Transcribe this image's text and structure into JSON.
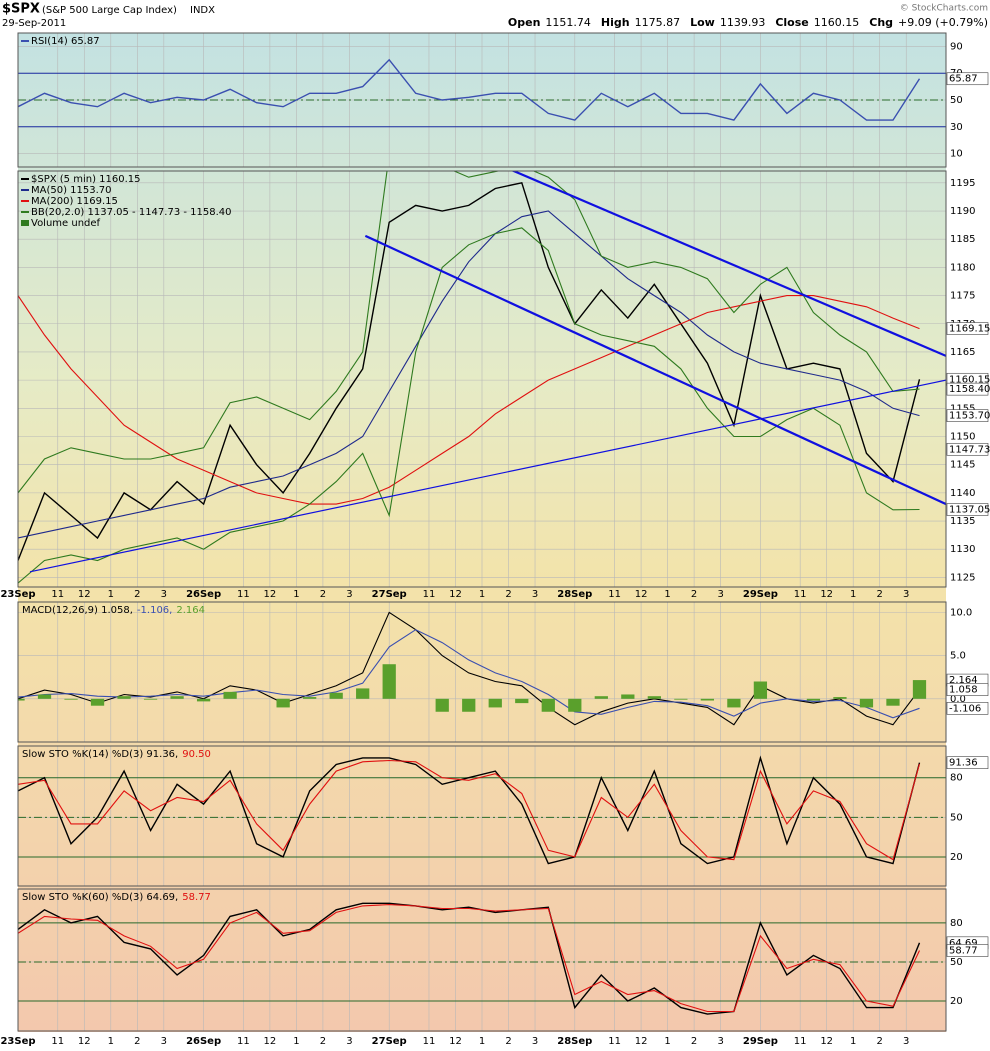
{
  "chart_data": {
    "type": "stock",
    "symbol": "$SPX",
    "name": "(S&P 500 Large Cap Index)",
    "exchange": "INDX",
    "date": "29-Sep-2011",
    "credit": "© StockCharts.com",
    "quote": [
      {
        "label": "Open",
        "value": 1151.74
      },
      {
        "label": "High",
        "value": 1175.87
      },
      {
        "label": "Low",
        "value": 1139.93
      },
      {
        "label": "Close",
        "value": 1160.15
      },
      {
        "label": "Chg",
        "value": "+9.09 (+0.79%)"
      }
    ],
    "x": [
      0,
      1,
      2,
      3,
      4,
      5,
      6,
      7,
      8,
      9,
      10,
      11,
      12,
      13,
      14,
      15,
      16,
      17,
      18,
      19,
      20,
      21,
      22,
      23,
      24,
      25,
      26,
      27,
      28,
      29,
      30,
      31,
      32,
      33,
      34
    ],
    "xlim": [
      0,
      35
    ],
    "xticks": [
      {
        "value": 0,
        "label": "23Sep"
      },
      {
        "value": 1.5,
        "label": "11"
      },
      {
        "value": 2.5,
        "label": "12"
      },
      {
        "value": 3.5,
        "label": "1"
      },
      {
        "value": 4.5,
        "label": "2"
      },
      {
        "value": 5.5,
        "label": "3"
      },
      {
        "value": 7,
        "label": "26Sep"
      },
      {
        "value": 8.5,
        "label": "11"
      },
      {
        "value": 9.5,
        "label": "12"
      },
      {
        "value": 10.5,
        "label": "1"
      },
      {
        "value": 11.5,
        "label": "2"
      },
      {
        "value": 12.5,
        "label": "3"
      },
      {
        "value": 14,
        "label": "27Sep"
      },
      {
        "value": 15.5,
        "label": "11"
      },
      {
        "value": 16.5,
        "label": "12"
      },
      {
        "value": 17.5,
        "label": "1"
      },
      {
        "value": 18.5,
        "label": "2"
      },
      {
        "value": 19.5,
        "label": "3"
      },
      {
        "value": 21,
        "label": "28Sep"
      },
      {
        "value": 22.5,
        "label": "11"
      },
      {
        "value": 23.5,
        "label": "12"
      },
      {
        "value": 24.5,
        "label": "1"
      },
      {
        "value": 25.5,
        "label": "2"
      },
      {
        "value": 26.5,
        "label": "3"
      },
      {
        "value": 28,
        "label": "29Sep"
      },
      {
        "value": 29.5,
        "label": "11"
      },
      {
        "value": 30.5,
        "label": "12"
      },
      {
        "value": 31.5,
        "label": "1"
      },
      {
        "value": 32.5,
        "label": "2"
      },
      {
        "value": 33.5,
        "label": "3"
      }
    ],
    "panels": [
      {
        "type": "line",
        "legend": "stacked",
        "ylim": [
          0,
          100
        ],
        "yticks": [
          10,
          30,
          50,
          70,
          90
        ],
        "ref_lines": [
          30,
          50,
          70
        ],
        "series": [
          {
            "name": "RSI(14) 65.87",
            "color": "#3a4fb0",
            "values": [
              45,
              55,
              48,
              45,
              55,
              48,
              52,
              50,
              58,
              48,
              45,
              55,
              55,
              60,
              80,
              55,
              50,
              52,
              55,
              55,
              40,
              35,
              55,
              45,
              55,
              40,
              40,
              35,
              62,
              40,
              55,
              50,
              35,
              35,
              65.87
            ]
          }
        ],
        "value_tags": [
          {
            "value": 65.87,
            "label": "65.87",
            "color": "#ffffff"
          }
        ]
      },
      {
        "type": "line",
        "legend": "stacked",
        "ylim": [
          1123.3,
          1197.1
        ],
        "yticks": [
          1125,
          1130,
          1135,
          1140,
          1145,
          1150,
          1155,
          1160,
          1165,
          1170,
          1175,
          1180,
          1185,
          1190,
          1195
        ],
        "series": [
          {
            "name": "$SPX (5 min) 1160.15",
            "color": "#000000",
            "values": [
              1128,
              1140,
              1136,
              1132,
              1140,
              1137,
              1142,
              1138,
              1152,
              1145,
              1140,
              1147,
              1155,
              1162,
              1188,
              1191,
              1190,
              1191,
              1194,
              1195,
              1180,
              1170,
              1176,
              1171,
              1177,
              1170,
              1163,
              1152,
              1175,
              1162,
              1163,
              1162,
              1147,
              1142,
              1160.15
            ]
          },
          {
            "name": "MA(50) 1153.70",
            "color": "#1f2a8c",
            "values": [
              1132,
              1133,
              1134,
              1135,
              1136,
              1137,
              1138,
              1139,
              1141,
              1142,
              1143,
              1145,
              1147,
              1150,
              1158,
              1166,
              1174,
              1181,
              1186,
              1189,
              1190,
              1186,
              1182,
              1178,
              1175,
              1172,
              1168,
              1165,
              1163,
              1162,
              1161,
              1160,
              1158,
              1155,
              1153.7
            ]
          },
          {
            "name": "MA(200) 1169.15",
            "color": "#e01010",
            "values": [
              1175,
              1168,
              1162,
              1157,
              1152,
              1149,
              1146,
              1144,
              1142,
              1140,
              1139,
              1138,
              1138,
              1139,
              1141,
              1144,
              1147,
              1150,
              1154,
              1157,
              1160,
              1162,
              1164,
              1166,
              1168,
              1170,
              1172,
              1173,
              1174,
              1175,
              1175,
              1174,
              1173,
              1171,
              1169.15
            ]
          },
          {
            "name": "BB(20,2.0) 1137.05 - 1147.73 - 1158.40",
            "color": "#2f7a1f",
            "values": [
              1140,
              1146,
              1148,
              1147,
              1146,
              1146,
              1147,
              1148,
              1156,
              1157,
              1155,
              1153,
              1158,
              1165,
              1200,
              1203,
              1198,
              1196,
              1197,
              1198,
              1196,
              1192,
              1182,
              1180,
              1181,
              1180,
              1178,
              1172,
              1177,
              1180,
              1172,
              1168,
              1165,
              1158,
              1158.4
            ]
          },
          {
            "color": "#2f7a1f",
            "values": [
              1124,
              1128,
              1129,
              1128,
              1130,
              1131,
              1132,
              1130,
              1133,
              1134,
              1135,
              1138,
              1142,
              1147,
              1136,
              1165,
              1180,
              1184,
              1186,
              1187,
              1183,
              1170,
              1168,
              1167,
              1166,
              1162,
              1155,
              1150,
              1150,
              1153,
              1155,
              1152,
              1140,
              1137,
              1137.05
            ]
          }
        ],
        "legend_extra": "Volume undef",
        "trendlines": [
          {
            "color": "#1010e0",
            "x": [
              18.25,
              35
            ],
            "y": [
              1198,
              1164.3
            ]
          },
          {
            "color": "#1010e0",
            "x": [
              13.1,
              35
            ],
            "y": [
              1185.6,
              1138
            ]
          },
          {
            "color": "#1010e0",
            "x": [
              0.45,
              35
            ],
            "y": [
              1126,
              1160
            ]
          }
        ],
        "value_tags": [
          {
            "value": 1169.15,
            "label": "1169.15",
            "color": "#ffffff"
          },
          {
            "value": 1160.15,
            "label": "1160.15",
            "color": "#ffffff"
          },
          {
            "value": 1158.4,
            "label": "1158.40",
            "color": "#ffffff"
          },
          {
            "value": 1153.7,
            "label": "1153.70",
            "color": "#ffffff"
          },
          {
            "value": 1147.73,
            "label": "1147.73",
            "color": "#ffffff"
          },
          {
            "value": 1137.05,
            "label": "1137.05",
            "color": "#ffffff"
          }
        ]
      },
      {
        "type": "line",
        "legend": "inline",
        "ylim": [
          -5,
          11.2
        ],
        "yticks": [
          {
            "value": 0,
            "label": "0.0"
          },
          {
            "value": 5,
            "label": "5.0"
          },
          {
            "value": 10,
            "label": "10.0"
          }
        ],
        "series": [
          {
            "name": "MACD(12,26,9) 1.058,",
            "type": "line",
            "color": "#000000",
            "values": [
              0,
              1,
              0.5,
              -0.5,
              0.5,
              0.2,
              0.8,
              0,
              1.5,
              1,
              -0.5,
              0.5,
              1.5,
              3,
              10,
              8,
              5,
              3,
              2,
              1.5,
              -1,
              -3,
              -1.5,
              -0.5,
              0,
              -0.5,
              -1,
              -3,
              1.5,
              0,
              -0.5,
              0,
              -2,
              -3,
              1.058
            ]
          },
          {
            "name": "-1.106,",
            "type": "line",
            "color": "#3a4fb0",
            "values": [
              0.2,
              0.5,
              0.6,
              0.3,
              0.2,
              0.3,
              0.5,
              0.3,
              0.7,
              1,
              0.5,
              0.3,
              0.8,
              1.8,
              6,
              8,
              6.5,
              4.5,
              3,
              2,
              0.5,
              -1.5,
              -1.8,
              -1,
              -0.3,
              -0.4,
              -0.8,
              -2,
              -0.5,
              0,
              -0.3,
              -0.2,
              -1,
              -2.2,
              -1.106
            ]
          },
          {
            "name": "2.164",
            "type": "bar",
            "color": "#5aa02c",
            "values": [
              -0.2,
              0.5,
              -0.1,
              -0.8,
              0.3,
              -0.1,
              0.3,
              -0.3,
              0.8,
              0,
              -1,
              0.2,
              0.7,
              1.2,
              4,
              0,
              -1.5,
              -1.5,
              -1,
              -0.5,
              -1.5,
              -1.5,
              0.3,
              0.5,
              0.3,
              -0.1,
              -0.2,
              -1,
              2,
              0,
              -0.2,
              0.2,
              -1,
              -0.8,
              2.164
            ]
          }
        ],
        "value_tags": [
          {
            "value": 2.164,
            "label": "2.164",
            "color": "#ffffff"
          },
          {
            "value": 1.058,
            "label": "1.058",
            "color": "#ffffff"
          },
          {
            "value": -1.106,
            "label": "-1.106",
            "color": "#ffffff"
          }
        ]
      },
      {
        "type": "line",
        "legend": "inline",
        "ylim": [
          -2,
          104
        ],
        "yticks": [
          20,
          50,
          80
        ],
        "ref_lines": [
          20,
          50,
          80
        ],
        "series": [
          {
            "name": "Slow STO %K(14) %D(3) 91.36,",
            "color": "#000000",
            "values": [
              70,
              80,
              30,
              50,
              85,
              40,
              75,
              60,
              85,
              30,
              20,
              70,
              90,
              95,
              95,
              90,
              75,
              80,
              85,
              60,
              15,
              20,
              80,
              40,
              85,
              30,
              15,
              20,
              95,
              30,
              80,
              60,
              20,
              15,
              91.36
            ]
          },
          {
            "name": "90.50",
            "color": "#e01010",
            "values": [
              75,
              78,
              45,
              45,
              70,
              55,
              65,
              62,
              78,
              45,
              25,
              60,
              85,
              92,
              93,
              92,
              80,
              78,
              83,
              68,
              25,
              20,
              65,
              50,
              75,
              40,
              20,
              18,
              85,
              45,
              70,
              62,
              30,
              18,
              90.5
            ]
          }
        ],
        "value_tags": [
          {
            "value": 91.36,
            "label": "91.36",
            "color": "#ffffff"
          }
        ]
      },
      {
        "type": "line",
        "legend": "inline",
        "ylim": [
          -3,
          106
        ],
        "yticks": [
          20,
          50,
          80
        ],
        "ref_lines": [
          20,
          50,
          80
        ],
        "series": [
          {
            "name": "Slow STO %K(60) %D(3) 64.69,",
            "color": "#000000",
            "values": [
              75,
              90,
              80,
              85,
              65,
              60,
              40,
              55,
              85,
              90,
              70,
              75,
              90,
              95,
              95,
              93,
              90,
              92,
              88,
              90,
              92,
              15,
              40,
              20,
              30,
              15,
              10,
              12,
              80,
              40,
              55,
              45,
              15,
              15,
              64.69
            ]
          },
          {
            "name": "58.77",
            "color": "#e01010",
            "values": [
              72,
              85,
              83,
              82,
              70,
              62,
              45,
              52,
              80,
              88,
              72,
              74,
              88,
              93,
              94,
              93,
              91,
              91,
              89,
              90,
              91,
              25,
              35,
              25,
              28,
              18,
              12,
              12,
              70,
              45,
              52,
              48,
              20,
              16,
              58.77
            ]
          }
        ],
        "value_tags": [
          {
            "value": 64.69,
            "label": "64.69",
            "color": "#ffffff"
          },
          {
            "value": 58.77,
            "label": "58.77",
            "color": "#ffffff"
          }
        ]
      }
    ]
  }
}
